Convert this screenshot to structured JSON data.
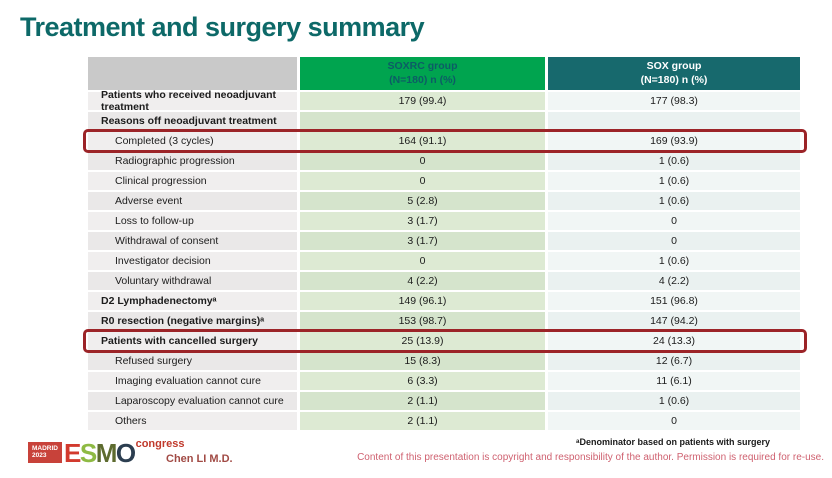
{
  "slide": {
    "title": "Treatment and surgery summary",
    "presenter": "Chen LI M.D.",
    "footnote": "ᵃDenominator based on patients with surgery",
    "copyright": "Content of this presentation is copyright and responsibility of the author. Permission is required for re-use.",
    "logo": {
      "city": "MADRID",
      "year": "2023",
      "letters": [
        "E",
        "S",
        "M",
        "O"
      ],
      "suffix": "congress"
    }
  },
  "table": {
    "header": {
      "col2_title": "SOXRC group",
      "col2_sub": "(N=180)  n (%)",
      "col3_title": "SOX group",
      "col3_sub": "(N=180)  n (%)"
    },
    "rows": [
      {
        "label": "Patients who received neoadjuvant treatment",
        "soxrc": "179 (99.4)",
        "sox": "177 (98.3)"
      },
      {
        "label": "Reasons off neoadjuvant treatment",
        "soxrc": "",
        "sox": ""
      },
      {
        "label": "Completed (3 cycles)",
        "soxrc": "164 (91.1)",
        "sox": "169 (93.9)"
      },
      {
        "label": "Radiographic progression",
        "soxrc": "0",
        "sox": "1 (0.6)"
      },
      {
        "label": "Clinical progression",
        "soxrc": "0",
        "sox": "1 (0.6)"
      },
      {
        "label": "Adverse event",
        "soxrc": "5 (2.8)",
        "sox": "1 (0.6)"
      },
      {
        "label": "Loss to follow-up",
        "soxrc": "3 (1.7)",
        "sox": "0"
      },
      {
        "label": "Withdrawal of consent",
        "soxrc": "3 (1.7)",
        "sox": "0"
      },
      {
        "label": "Investigator decision",
        "soxrc": "0",
        "sox": "1 (0.6)"
      },
      {
        "label": "Voluntary withdrawal",
        "soxrc": "4 (2.2)",
        "sox": "4 (2.2)"
      },
      {
        "label": "D2 Lymphadenectomyᵃ",
        "soxrc": "149 (96.1)",
        "sox": "151 (96.8)"
      },
      {
        "label": "R0 resection (negative margins)ᵃ",
        "soxrc": "153 (98.7)",
        "sox": "147 (94.2)"
      },
      {
        "label": "Patients with cancelled surgery",
        "soxrc": "25 (13.9)",
        "sox": "24 (13.3)"
      },
      {
        "label": "Refused surgery",
        "soxrc": "15 (8.3)",
        "sox": "12 (6.7)"
      },
      {
        "label": "Imaging evaluation cannot cure",
        "soxrc": "6 (3.3)",
        "sox": "11 (6.1)"
      },
      {
        "label": "Laparoscopy evaluation cannot cure",
        "soxrc": "2 (1.1)",
        "sox": "1 (0.6)"
      },
      {
        "label": "Others",
        "soxrc": "2 (1.1)",
        "sox": "0"
      }
    ]
  },
  "colors": {
    "title": "#0D6968",
    "header_green": "#00A44F",
    "header_teal": "#17696D",
    "highlight_red": "#9C2428",
    "copyright_pink": "#CF6170"
  }
}
